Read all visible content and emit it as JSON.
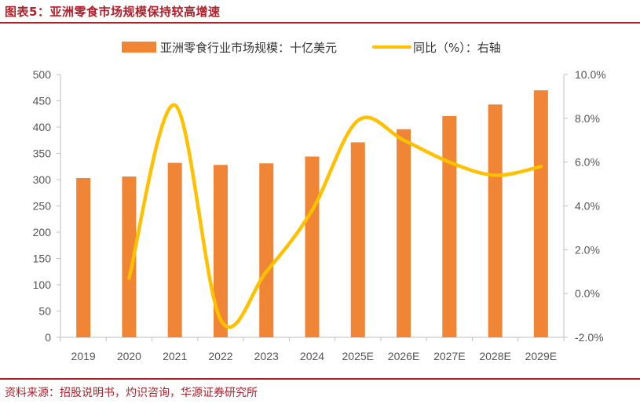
{
  "figure": {
    "title": "图表5：亚洲零食市场规模保持较高增速",
    "source": "资料来源：招股说明书，灼识咨询，华源证券研究所"
  },
  "colors": {
    "accent": "#b0202a",
    "bar": "#f08536",
    "line": "#ffc000"
  },
  "chart_data": {
    "type": "bar",
    "categories": [
      "2019",
      "2020",
      "2021",
      "2022",
      "2023",
      "2024",
      "2025E",
      "2026E",
      "2027E",
      "2028E",
      "2029E"
    ],
    "series": [
      {
        "name": "亚洲零食行业市场规模：十亿美元",
        "type": "bar",
        "axis": "left",
        "values": [
          303,
          306,
          332,
          328,
          331,
          344,
          371,
          396,
          421,
          443,
          470
        ]
      },
      {
        "name": "同比（%）：右轴",
        "type": "line",
        "axis": "right",
        "values": [
          null,
          0.7,
          8.6,
          -1.2,
          1.0,
          3.8,
          7.9,
          7.0,
          6.0,
          5.4,
          5.8
        ]
      }
    ],
    "y_left": {
      "ylim": [
        0,
        500
      ],
      "ticks": [
        "0",
        "50",
        "100",
        "150",
        "200",
        "250",
        "300",
        "350",
        "400",
        "450",
        "500"
      ]
    },
    "y_right": {
      "ylim": [
        -2.0,
        10.0
      ],
      "ticks": [
        "-2.0%",
        "0.0%",
        "2.0%",
        "4.0%",
        "6.0%",
        "8.0%",
        "10.0%"
      ]
    },
    "legend_position": "top-center",
    "grid": false
  }
}
